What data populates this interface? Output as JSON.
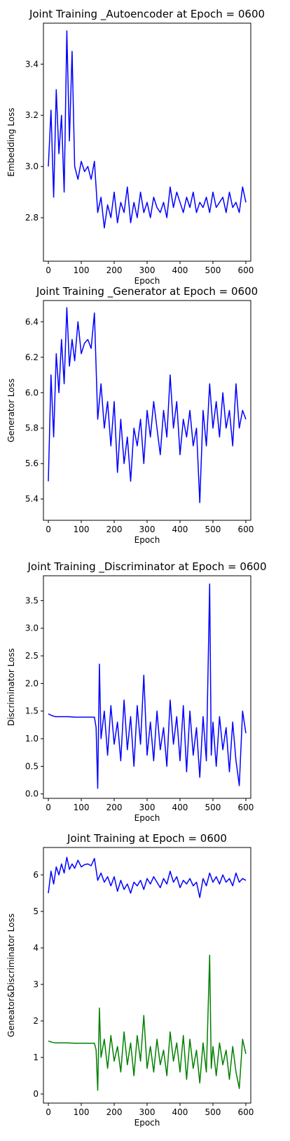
{
  "chart_data": [
    {
      "type": "line",
      "title": "Joint Training _Autoencoder at Epoch = 0600",
      "xlabel": "Epoch",
      "ylabel": "Embedding Loss",
      "xlim": [
        -15,
        615
      ],
      "ylim": [
        2.63,
        3.56
      ],
      "xticks": [
        0,
        100,
        200,
        300,
        400,
        500,
        600
      ],
      "yticks": [
        2.8,
        3.0,
        3.2,
        3.4
      ],
      "yticklabels": [
        "2.8",
        "3.0",
        "3.2",
        "3.4"
      ],
      "grid": false,
      "legend": "none",
      "series": [
        {
          "color": "#0000ff",
          "x": [
            0,
            8,
            16,
            24,
            32,
            40,
            48,
            56,
            64,
            72,
            80,
            90,
            100,
            110,
            120,
            130,
            140,
            150,
            160,
            170,
            180,
            190,
            200,
            210,
            220,
            230,
            240,
            250,
            260,
            270,
            280,
            290,
            300,
            310,
            320,
            330,
            340,
            350,
            360,
            370,
            380,
            390,
            400,
            410,
            420,
            430,
            440,
            450,
            460,
            470,
            480,
            490,
            500,
            510,
            520,
            530,
            540,
            550,
            560,
            570,
            580,
            590,
            600
          ],
          "y": [
            3.0,
            3.22,
            2.88,
            3.3,
            3.05,
            3.2,
            2.9,
            3.53,
            3.1,
            3.45,
            3.0,
            2.95,
            3.02,
            2.98,
            3.0,
            2.95,
            3.02,
            2.82,
            2.88,
            2.76,
            2.85,
            2.8,
            2.9,
            2.78,
            2.86,
            2.82,
            2.92,
            2.78,
            2.86,
            2.8,
            2.9,
            2.82,
            2.86,
            2.8,
            2.88,
            2.84,
            2.82,
            2.86,
            2.8,
            2.92,
            2.84,
            2.9,
            2.86,
            2.82,
            2.88,
            2.84,
            2.9,
            2.82,
            2.86,
            2.84,
            2.88,
            2.82,
            2.9,
            2.84,
            2.86,
            2.88,
            2.82,
            2.9,
            2.84,
            2.86,
            2.82,
            2.92,
            2.86
          ]
        }
      ]
    },
    {
      "type": "line",
      "title": "Joint Training _Generator at Epoch = 0600",
      "xlabel": "Epoch",
      "ylabel": "Generator Loss",
      "xlim": [
        -15,
        615
      ],
      "ylim": [
        5.28,
        6.52
      ],
      "xticks": [
        0,
        100,
        200,
        300,
        400,
        500,
        600
      ],
      "yticks": [
        5.4,
        5.6,
        5.8,
        6.0,
        6.2,
        6.4
      ],
      "yticklabels": [
        "5.4",
        "5.6",
        "5.8",
        "6.0",
        "6.2",
        "6.4"
      ],
      "grid": false,
      "legend": "none",
      "series": [
        {
          "color": "#0000ff",
          "x": [
            0,
            8,
            16,
            24,
            32,
            40,
            48,
            56,
            64,
            72,
            80,
            90,
            100,
            110,
            120,
            130,
            140,
            150,
            160,
            170,
            180,
            190,
            200,
            210,
            220,
            230,
            240,
            250,
            260,
            270,
            280,
            290,
            300,
            310,
            320,
            330,
            340,
            350,
            360,
            370,
            380,
            390,
            400,
            410,
            420,
            430,
            440,
            450,
            460,
            470,
            480,
            490,
            500,
            510,
            520,
            530,
            540,
            550,
            560,
            570,
            580,
            590,
            600
          ],
          "y": [
            5.5,
            6.1,
            5.75,
            6.22,
            6.0,
            6.3,
            6.05,
            6.48,
            6.15,
            6.3,
            6.18,
            6.4,
            6.22,
            6.28,
            6.3,
            6.25,
            6.45,
            5.85,
            6.05,
            5.8,
            5.95,
            5.7,
            5.95,
            5.55,
            5.85,
            5.6,
            5.75,
            5.5,
            5.8,
            5.7,
            5.85,
            5.6,
            5.9,
            5.75,
            5.95,
            5.8,
            5.65,
            5.9,
            5.75,
            6.1,
            5.8,
            5.95,
            5.65,
            5.85,
            5.75,
            5.9,
            5.7,
            5.8,
            5.38,
            5.9,
            5.7,
            6.05,
            5.8,
            5.95,
            5.75,
            6.0,
            5.8,
            5.9,
            5.7,
            6.05,
            5.8,
            5.9,
            5.85
          ]
        }
      ]
    },
    {
      "type": "line",
      "title": "Joint Training _Discriminator at Epoch = 0600",
      "xlabel": "Epoch",
      "ylabel": "Discriminator Loss",
      "xlim": [
        -15,
        615
      ],
      "ylim": [
        -0.08,
        3.95
      ],
      "xticks": [
        0,
        100,
        200,
        300,
        400,
        500,
        600
      ],
      "yticks": [
        0.0,
        0.5,
        1.0,
        1.5,
        2.0,
        2.5,
        3.0,
        3.5
      ],
      "yticklabels": [
        "0.0",
        "0.5",
        "1.0",
        "1.5",
        "2.0",
        "2.5",
        "3.0",
        "3.5"
      ],
      "grid": false,
      "legend": "none",
      "series": [
        {
          "color": "#0000ff",
          "x": [
            0,
            10,
            20,
            40,
            60,
            80,
            100,
            120,
            140,
            145,
            150,
            155,
            160,
            170,
            180,
            190,
            200,
            210,
            220,
            230,
            240,
            250,
            260,
            270,
            280,
            290,
            300,
            310,
            320,
            330,
            340,
            350,
            360,
            370,
            380,
            390,
            400,
            410,
            420,
            430,
            440,
            450,
            460,
            470,
            480,
            490,
            495,
            500,
            510,
            520,
            530,
            540,
            550,
            560,
            570,
            580,
            590,
            600
          ],
          "y": [
            1.45,
            1.42,
            1.4,
            1.4,
            1.4,
            1.39,
            1.39,
            1.39,
            1.39,
            1.2,
            0.1,
            2.35,
            1.0,
            1.5,
            0.7,
            1.6,
            0.9,
            1.3,
            0.6,
            1.7,
            0.8,
            1.4,
            0.5,
            1.6,
            0.9,
            2.15,
            0.7,
            1.3,
            0.6,
            1.5,
            0.8,
            1.2,
            0.5,
            1.7,
            0.9,
            1.4,
            0.6,
            1.6,
            0.4,
            1.5,
            0.7,
            1.2,
            0.3,
            1.4,
            0.6,
            3.8,
            0.7,
            1.3,
            0.5,
            1.4,
            0.8,
            1.2,
            0.4,
            1.3,
            0.6,
            0.15,
            1.5,
            1.1
          ]
        }
      ]
    },
    {
      "type": "line",
      "title": "Joint Training at Epoch = 0600",
      "xlabel": "Epoch",
      "ylabel": "Geneator&Discriminator Loss",
      "xlim": [
        -15,
        615
      ],
      "ylim": [
        -0.25,
        6.75
      ],
      "xticks": [
        0,
        100,
        200,
        300,
        400,
        500,
        600
      ],
      "yticks": [
        0,
        1,
        2,
        3,
        4,
        5,
        6
      ],
      "yticklabels": [
        "0",
        "1",
        "2",
        "3",
        "4",
        "5",
        "6"
      ],
      "grid": false,
      "legend": "none",
      "series": [
        {
          "color": "#0000ff",
          "x": [
            0,
            8,
            16,
            24,
            32,
            40,
            48,
            56,
            64,
            72,
            80,
            90,
            100,
            110,
            120,
            130,
            140,
            150,
            160,
            170,
            180,
            190,
            200,
            210,
            220,
            230,
            240,
            250,
            260,
            270,
            280,
            290,
            300,
            310,
            320,
            330,
            340,
            350,
            360,
            370,
            380,
            390,
            400,
            410,
            420,
            430,
            440,
            450,
            460,
            470,
            480,
            490,
            500,
            510,
            520,
            530,
            540,
            550,
            560,
            570,
            580,
            590,
            600
          ],
          "y": [
            5.5,
            6.1,
            5.75,
            6.22,
            6.0,
            6.3,
            6.05,
            6.48,
            6.15,
            6.3,
            6.18,
            6.4,
            6.22,
            6.28,
            6.3,
            6.25,
            6.45,
            5.85,
            6.05,
            5.8,
            5.95,
            5.7,
            5.95,
            5.55,
            5.85,
            5.6,
            5.75,
            5.5,
            5.8,
            5.7,
            5.85,
            5.6,
            5.9,
            5.75,
            5.95,
            5.8,
            5.65,
            5.9,
            5.75,
            6.1,
            5.8,
            5.95,
            5.65,
            5.85,
            5.75,
            5.9,
            5.7,
            5.8,
            5.38,
            5.9,
            5.7,
            6.05,
            5.8,
            5.95,
            5.75,
            6.0,
            5.8,
            5.9,
            5.7,
            6.05,
            5.8,
            5.9,
            5.85
          ]
        },
        {
          "color": "#008000",
          "x": [
            0,
            10,
            20,
            40,
            60,
            80,
            100,
            120,
            140,
            145,
            150,
            155,
            160,
            170,
            180,
            190,
            200,
            210,
            220,
            230,
            240,
            250,
            260,
            270,
            280,
            290,
            300,
            310,
            320,
            330,
            340,
            350,
            360,
            370,
            380,
            390,
            400,
            410,
            420,
            430,
            440,
            450,
            460,
            470,
            480,
            490,
            495,
            500,
            510,
            520,
            530,
            540,
            550,
            560,
            570,
            580,
            590,
            600
          ],
          "y": [
            1.45,
            1.42,
            1.4,
            1.4,
            1.4,
            1.39,
            1.39,
            1.39,
            1.39,
            1.2,
            0.1,
            2.35,
            1.0,
            1.5,
            0.7,
            1.6,
            0.9,
            1.3,
            0.6,
            1.7,
            0.8,
            1.4,
            0.5,
            1.6,
            0.9,
            2.15,
            0.7,
            1.3,
            0.6,
            1.5,
            0.8,
            1.2,
            0.5,
            1.7,
            0.9,
            1.4,
            0.6,
            1.6,
            0.4,
            1.5,
            0.7,
            1.2,
            0.3,
            1.4,
            0.6,
            3.8,
            0.7,
            1.3,
            0.5,
            1.4,
            0.8,
            1.2,
            0.4,
            1.3,
            0.6,
            0.15,
            1.5,
            1.1
          ]
        }
      ]
    }
  ]
}
